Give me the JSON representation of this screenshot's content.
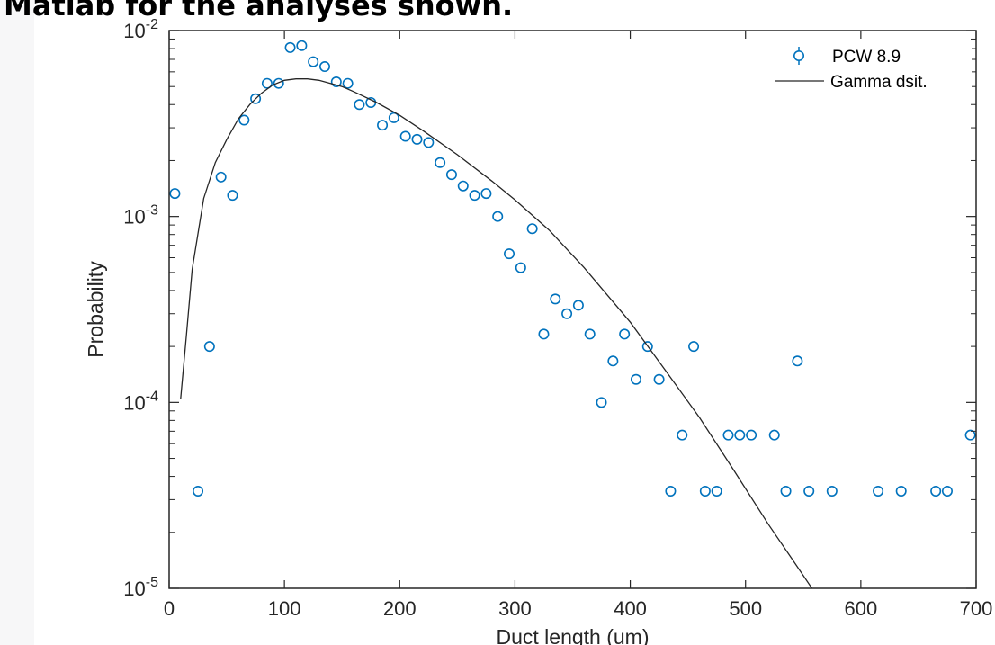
{
  "page": {
    "heading": "Matlab for the analyses shown."
  },
  "chart_data": {
    "type": "scatter",
    "xlabel": "Duct length (um)",
    "ylabel": "Probability",
    "xlim": [
      0,
      700
    ],
    "ylim": [
      1e-05,
      0.01
    ],
    "yscale": "log",
    "x_ticks": [
      "0",
      "100",
      "200",
      "300",
      "400",
      "500",
      "600",
      "700"
    ],
    "y_ticks": [
      {
        "base": "10",
        "exp": "-5"
      },
      {
        "base": "10",
        "exp": "-4"
      },
      {
        "base": "10",
        "exp": "-3"
      },
      {
        "base": "10",
        "exp": "-2"
      }
    ],
    "grid": false,
    "legend_position": "top-right",
    "colors": {
      "markers": "#0072bd",
      "fit_line": "#262626",
      "axes": "#262626"
    },
    "series": [
      {
        "name": "PCW 8.9",
        "kind": "markers",
        "x": [
          5,
          25,
          35,
          45,
          55,
          65,
          75,
          85,
          95,
          105,
          115,
          125,
          135,
          145,
          155,
          165,
          175,
          185,
          195,
          205,
          215,
          225,
          235,
          245,
          255,
          265,
          275,
          285,
          295,
          305,
          315,
          325,
          335,
          345,
          355,
          365,
          375,
          385,
          395,
          405,
          415,
          425,
          435,
          445,
          455,
          465,
          475,
          485,
          495,
          505,
          525,
          535,
          545,
          555,
          575,
          615,
          635,
          665,
          675,
          695
        ],
        "y": [
          0.00133,
          3.33e-05,
          0.0002,
          0.00163,
          0.0013,
          0.0033,
          0.0043,
          0.0052,
          0.0052,
          0.0081,
          0.0083,
          0.0068,
          0.0064,
          0.0053,
          0.0052,
          0.004,
          0.0041,
          0.0031,
          0.0034,
          0.0027,
          0.0026,
          0.0025,
          0.00195,
          0.00168,
          0.00146,
          0.0013,
          0.00133,
          0.001,
          0.00063,
          0.00053,
          0.00086,
          0.000233,
          0.00036,
          0.0003,
          0.000333,
          0.000233,
          0.0001,
          0.000167,
          0.000233,
          0.000133,
          0.0002,
          0.000133,
          3.33e-05,
          6.67e-05,
          0.0002,
          3.33e-05,
          3.33e-05,
          6.67e-05,
          6.67e-05,
          6.67e-05,
          6.67e-05,
          3.33e-05,
          0.000167,
          3.33e-05,
          3.33e-05,
          3.33e-05,
          3.33e-05,
          3.33e-05,
          3.33e-05,
          6.67e-05
        ]
      },
      {
        "name": "Gamma dsit.",
        "kind": "line",
        "x": [
          10,
          15,
          20,
          30,
          40,
          50,
          60,
          70,
          80,
          90,
          100,
          110,
          120,
          130,
          140,
          150,
          160,
          180,
          200,
          220,
          250,
          280,
          300,
          330,
          360,
          400,
          430,
          460,
          490,
          520,
          540,
          560
        ],
        "y": [
          0.000105,
          0.00023,
          0.00052,
          0.00125,
          0.00195,
          0.0026,
          0.00335,
          0.004,
          0.0046,
          0.0051,
          0.0054,
          0.0055,
          0.0055,
          0.0054,
          0.0052,
          0.005,
          0.0047,
          0.0041,
          0.0035,
          0.0029,
          0.00215,
          0.00155,
          0.00123,
          0.00084,
          0.00053,
          0.00027,
          0.00015,
          8.3e-05,
          4.3e-05,
          2.2e-05,
          1.45e-05,
          9.5e-06
        ]
      }
    ]
  }
}
